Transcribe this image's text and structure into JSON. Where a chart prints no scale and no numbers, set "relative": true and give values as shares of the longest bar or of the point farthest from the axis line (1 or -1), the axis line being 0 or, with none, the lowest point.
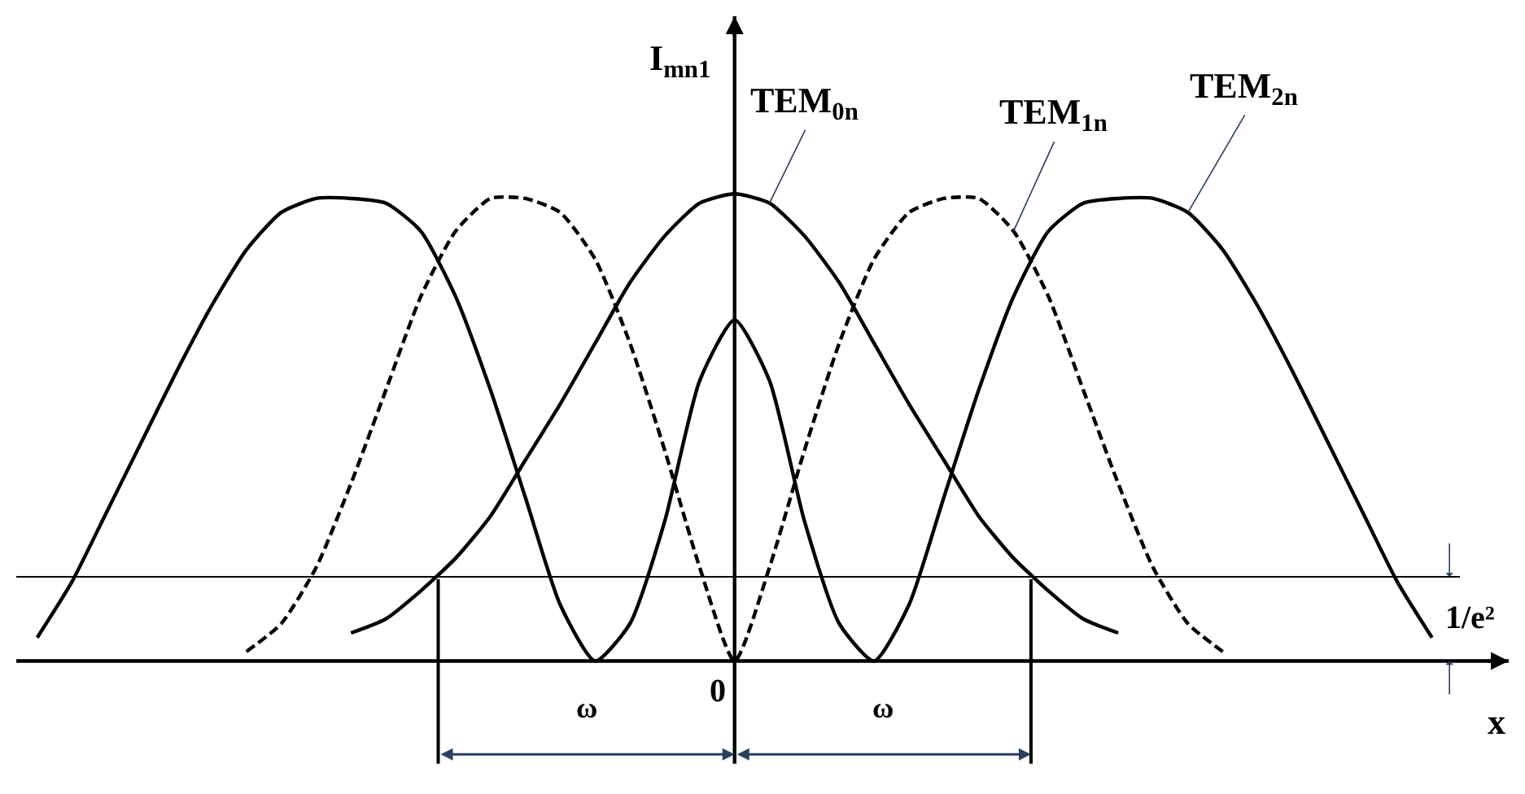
{
  "chart_data": {
    "type": "line",
    "relative": true,
    "legend": false,
    "ylabel": "I$_{mn1}$",
    "xlabel": "x",
    "categories": [
      null,
      null,
      null,
      null,
      null,
      null,
      null,
      null,
      null,
      null,
      null,
      null,
      null,
      null,
      null,
      null,
      null,
      null,
      null,
      null,
      null,
      null,
      null,
      null,
      null,
      null,
      null,
      null,
      null,
      null,
      null,
      null,
      null,
      null,
      null,
      null,
      null,
      null,
      null,
      null,
      null
    ],
    "series": [
      {
        "name": "TEM$_{0n}$",
        "color": "#000000",
        "line_style": "solid",
        "values": [
          null,
          null,
          null,
          null,
          null,
          null,
          null,
          null,
          null,
          0.06,
          0.09,
          0.15,
          0.22,
          0.31,
          0.43,
          0.55,
          0.68,
          0.81,
          0.91,
          0.98,
          1,
          0.98,
          0.91,
          0.81,
          0.68,
          0.55,
          0.43,
          0.31,
          0.22,
          0.15,
          0.09,
          0.06,
          null,
          null,
          null,
          null,
          null,
          null,
          null,
          null,
          null
        ]
      },
      {
        "name": "TEM$_{1n}$",
        "color": "#000000",
        "line_style": "dashed",
        "values": [
          null,
          null,
          null,
          null,
          null,
          null,
          0.02,
          0.08,
          0.2,
          0.38,
          0.58,
          0.78,
          0.92,
          0.99,
          0.99,
          0.96,
          0.86,
          0.68,
          0.45,
          0.2,
          0,
          0.2,
          0.45,
          0.68,
          0.86,
          0.96,
          0.99,
          0.99,
          0.92,
          0.78,
          0.58,
          0.38,
          0.2,
          0.08,
          0.02,
          null,
          null,
          null,
          null,
          null,
          null
        ]
      },
      {
        "name": "TEM$_{2n}$",
        "color": "#000000",
        "line_style": "solid",
        "values": [
          0.05,
          0.17,
          0.32,
          0.47,
          0.62,
          0.76,
          0.88,
          0.96,
          0.99,
          0.99,
          0.98,
          0.92,
          0.78,
          0.58,
          0.35,
          0.12,
          0,
          0.08,
          0.3,
          0.6,
          0.73,
          0.6,
          0.3,
          0.08,
          0,
          0.12,
          0.35,
          0.58,
          0.78,
          0.92,
          0.98,
          0.99,
          0.99,
          0.96,
          0.88,
          0.76,
          0.62,
          0.47,
          0.32,
          0.17,
          0.05
        ]
      }
    ],
    "ref_lines": [
      {
        "axis": "y",
        "value": 0.18,
        "label": "1/e²",
        "color": "#000000",
        "line_style": "solid"
      }
    ],
    "annotations": [
      "ω",
      "0",
      "ω"
    ]
  }
}
